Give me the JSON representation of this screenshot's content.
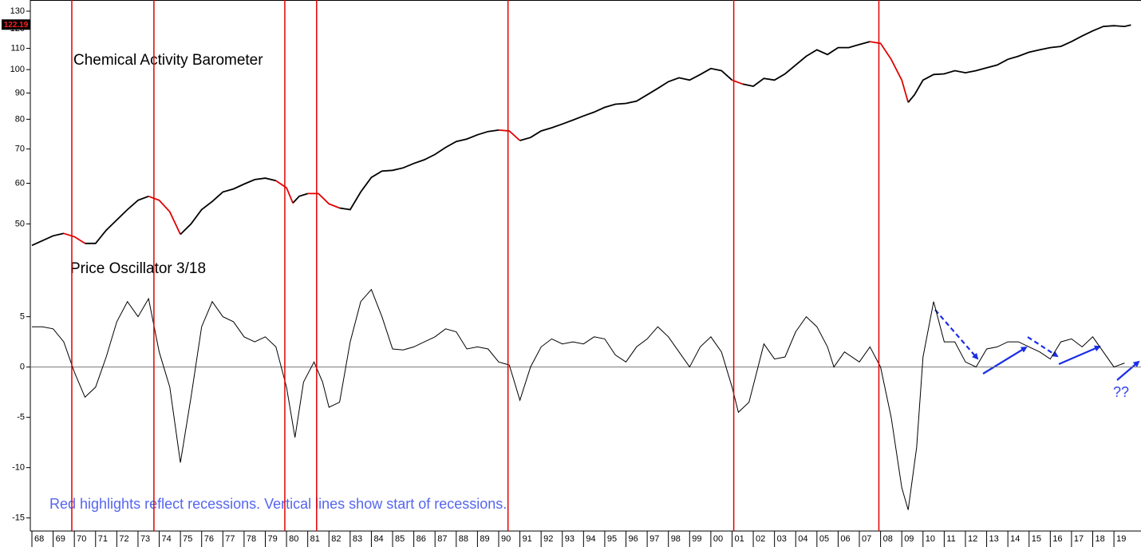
{
  "chart_data": [
    {
      "type": "line",
      "title": "Chemical Activity Barometer",
      "log_scale": true,
      "color": "#000000",
      "recession_color": "#e00000",
      "last_value": 122.19,
      "ylim": [
        44,
        136.7
      ],
      "yticks": [
        50,
        60,
        70,
        80,
        90,
        100,
        110,
        120,
        130
      ],
      "xlim": [
        1968,
        2020.2
      ],
      "x": [
        1968.0,
        1969.0,
        1969.5,
        1970.0,
        1970.5,
        1971.0,
        1971.5,
        1972.0,
        1972.5,
        1973.0,
        1973.5,
        1974.0,
        1974.5,
        1975.0,
        1975.5,
        1976.0,
        1976.5,
        1977.0,
        1977.5,
        1978.0,
        1978.5,
        1979.0,
        1979.5,
        1980.0,
        1980.3,
        1980.6,
        1981.0,
        1981.5,
        1982.0,
        1982.5,
        1983.0,
        1983.5,
        1984.0,
        1984.5,
        1985.0,
        1985.5,
        1986.0,
        1986.5,
        1987.0,
        1987.5,
        1988.0,
        1988.5,
        1989.0,
        1989.5,
        1990.0,
        1990.5,
        1991.0,
        1991.5,
        1992.0,
        1992.5,
        1993.0,
        1993.5,
        1994.0,
        1994.5,
        1995.0,
        1995.5,
        1996.0,
        1996.5,
        1997.0,
        1997.5,
        1998.0,
        1998.5,
        1999.0,
        1999.5,
        2000.0,
        2000.5,
        2001.0,
        2001.5,
        2002.0,
        2002.5,
        2003.0,
        2003.5,
        2004.0,
        2004.5,
        2005.0,
        2005.5,
        2006.0,
        2006.5,
        2007.0,
        2007.5,
        2008.0,
        2008.5,
        2009.0,
        2009.3,
        2009.6,
        2010.0,
        2010.5,
        2011.0,
        2011.5,
        2012.0,
        2012.5,
        2013.0,
        2013.5,
        2014.0,
        2014.5,
        2015.0,
        2015.5,
        2016.0,
        2016.5,
        2017.0,
        2017.5,
        2018.0,
        2018.5,
        2019.0,
        2019.5,
        2019.8
      ],
      "values": [
        45.4,
        47.4,
        47.9,
        47.2,
        45.8,
        45.8,
        48.6,
        50.9,
        53.3,
        55.6,
        56.6,
        55.6,
        52.8,
        47.7,
        50,
        53.3,
        55.3,
        57.7,
        58.5,
        59.8,
        61.0,
        61.4,
        60.7,
        58.8,
        54.9,
        56.6,
        57.3,
        57.3,
        54.7,
        53.7,
        53.3,
        57.7,
        61.6,
        63.4,
        63.6,
        64.3,
        65.6,
        66.7,
        68.3,
        70.5,
        72.4,
        73.2,
        74.6,
        75.7,
        76.2,
        75.9,
        72.7,
        73.7,
        75.9,
        77.0,
        78.3,
        79.7,
        81.2,
        82.6,
        84.4,
        85.6,
        85.9,
        86.8,
        89.3,
        91.9,
        94.7,
        96.4,
        95.4,
        97.8,
        100.5,
        99.5,
        95.4,
        93.7,
        92.8,
        96.1,
        95.4,
        98.1,
        102.1,
        106.2,
        109.3,
        107.0,
        110.4,
        110.4,
        111.9,
        113.4,
        112.5,
        104.7,
        95.4,
        86.3,
        89.3,
        95.4,
        97.8,
        98.1,
        99.5,
        98.6,
        99.5,
        100.8,
        102.1,
        104.7,
        106.2,
        108.1,
        109.3,
        110.4,
        111.0,
        113.4,
        116.3,
        119.0,
        121.4,
        121.8,
        121.4,
        122.19
      ],
      "recessions": [
        [
          1969.88,
          1970.9
        ],
        [
          1973.75,
          1975.2
        ],
        [
          1979.92,
          1980.5
        ],
        [
          1981.42,
          1982.9
        ],
        [
          1990.44,
          1991.2
        ],
        [
          2001.08,
          2001.9
        ],
        [
          2007.92,
          2009.5
        ]
      ]
    },
    {
      "type": "line",
      "title": "Price Oscillator 3/18",
      "color": "#000000",
      "zero_line": true,
      "annotation": "Red highlights reflect recessions. Vertical lines show start of recessions.",
      "question": "??",
      "ylim": [
        -16.3,
        11.4
      ],
      "yticks": [
        5,
        0,
        -5,
        -10,
        -15
      ],
      "xlim": [
        1968,
        2020.2
      ],
      "xticks": [
        {
          "value": 1968,
          "label": "68"
        },
        {
          "value": 1969,
          "label": "69"
        },
        {
          "value": 1970,
          "label": "70"
        },
        {
          "value": 1971,
          "label": "71"
        },
        {
          "value": 1972,
          "label": "72"
        },
        {
          "value": 1973,
          "label": "73"
        },
        {
          "value": 1974,
          "label": "74"
        },
        {
          "value": 1975,
          "label": "75"
        },
        {
          "value": 1976,
          "label": "76"
        },
        {
          "value": 1977,
          "label": "77"
        },
        {
          "value": 1978,
          "label": "78"
        },
        {
          "value": 1979,
          "label": "79"
        },
        {
          "value": 1980,
          "label": "80"
        },
        {
          "value": 1981,
          "label": "81"
        },
        {
          "value": 1982,
          "label": "82"
        },
        {
          "value": 1983,
          "label": "83"
        },
        {
          "value": 1984,
          "label": "84"
        },
        {
          "value": 1985,
          "label": "85"
        },
        {
          "value": 1986,
          "label": "86"
        },
        {
          "value": 1987,
          "label": "87"
        },
        {
          "value": 1988,
          "label": "88"
        },
        {
          "value": 1989,
          "label": "89"
        },
        {
          "value": 1990,
          "label": "90"
        },
        {
          "value": 1991,
          "label": "91"
        },
        {
          "value": 1992,
          "label": "92"
        },
        {
          "value": 1993,
          "label": "93"
        },
        {
          "value": 1994,
          "label": "94"
        },
        {
          "value": 1995,
          "label": "95"
        },
        {
          "value": 1996,
          "label": "96"
        },
        {
          "value": 1997,
          "label": "97"
        },
        {
          "value": 1998,
          "label": "98"
        },
        {
          "value": 1999,
          "label": "99"
        },
        {
          "value": 2000,
          "label": "00"
        },
        {
          "value": 2001,
          "label": "01"
        },
        {
          "value": 2002,
          "label": "02"
        },
        {
          "value": 2003,
          "label": "03"
        },
        {
          "value": 2004,
          "label": "04"
        },
        {
          "value": 2005,
          "label": "05"
        },
        {
          "value": 2006,
          "label": "06"
        },
        {
          "value": 2007,
          "label": "07"
        },
        {
          "value": 2008,
          "label": "08"
        },
        {
          "value": 2009,
          "label": "09"
        },
        {
          "value": 2010,
          "label": "10"
        },
        {
          "value": 2011,
          "label": "11"
        },
        {
          "value": 2012,
          "label": "12"
        },
        {
          "value": 2013,
          "label": "13"
        },
        {
          "value": 2014,
          "label": "14"
        },
        {
          "value": 2015,
          "label": "15"
        },
        {
          "value": 2016,
          "label": "16"
        },
        {
          "value": 2017,
          "label": "17"
        },
        {
          "value": 2018,
          "label": "18"
        },
        {
          "value": 2019,
          "label": "19"
        }
      ],
      "x": [
        1968.0,
        1968.5,
        1969.0,
        1969.5,
        1970.0,
        1970.5,
        1971.0,
        1971.5,
        1972.0,
        1972.5,
        1973.0,
        1973.5,
        1974.0,
        1974.5,
        1975.0,
        1975.5,
        1976.0,
        1976.5,
        1977.0,
        1977.5,
        1978.0,
        1978.5,
        1979.0,
        1979.5,
        1980.0,
        1980.4,
        1980.8,
        1981.3,
        1981.7,
        1982.0,
        1982.5,
        1983.0,
        1983.5,
        1984.0,
        1984.5,
        1985.0,
        1985.5,
        1986.0,
        1986.5,
        1987.0,
        1987.5,
        1988.0,
        1988.5,
        1989.0,
        1989.5,
        1990.0,
        1990.5,
        1991.0,
        1991.5,
        1992.0,
        1992.5,
        1993.0,
        1993.5,
        1994.0,
        1994.5,
        1995.0,
        1995.5,
        1996.0,
        1996.5,
        1997.0,
        1997.5,
        1998.0,
        1998.5,
        1999.0,
        1999.5,
        2000.0,
        2000.5,
        2001.0,
        2001.3,
        2001.8,
        2002.5,
        2003.0,
        2003.5,
        2004.0,
        2004.5,
        2005.0,
        2005.5,
        2005.8,
        2006.3,
        2007.0,
        2007.5,
        2008.0,
        2008.5,
        2009.0,
        2009.3,
        2009.7,
        2010.0,
        2010.5,
        2011.0,
        2011.5,
        2012.0,
        2012.5,
        2013.0,
        2013.5,
        2014.0,
        2014.5,
        2015.0,
        2015.5,
        2016.0,
        2016.5,
        2017.0,
        2017.5,
        2018.0,
        2018.5,
        2019.0,
        2019.5
      ],
      "values": [
        4,
        4.0,
        3.8,
        2.5,
        -0.5,
        -3.0,
        -2.0,
        1.0,
        4.5,
        6.5,
        5.0,
        6.8,
        1.5,
        -2.0,
        -9.5,
        -3.0,
        4.0,
        6.5,
        5.0,
        4.5,
        3.0,
        2.5,
        3.0,
        2.0,
        -2.0,
        -7.0,
        -1.5,
        0.5,
        -1.5,
        -4.0,
        -3.5,
        2.5,
        6.5,
        7.7,
        5.0,
        1.8,
        1.7,
        2.0,
        2.5,
        3.0,
        3.8,
        3.5,
        1.8,
        2.0,
        1.8,
        0.5,
        0.2,
        -3.3,
        0.0,
        2.0,
        2.8,
        2.3,
        2.5,
        2.3,
        3.0,
        2.8,
        1.2,
        0.5,
        2.0,
        2.8,
        4.0,
        3.0,
        1.5,
        0.0,
        2.0,
        3.0,
        1.5,
        -2.0,
        -4.5,
        -3.5,
        2.3,
        0.8,
        1.0,
        3.5,
        5.0,
        4.0,
        2.0,
        0.0,
        1.5,
        0.5,
        2.0,
        0.0,
        -5.0,
        -12.0,
        -14.2,
        -8.0,
        1.0,
        6.5,
        2.5,
        2.5,
        0.5,
        0.0,
        1.8,
        2.0,
        2.5,
        2.5,
        2.0,
        1.5,
        0.8,
        2.5,
        2.8,
        2.0,
        3.0,
        1.5,
        0.0,
        0.4
      ]
    }
  ]
}
